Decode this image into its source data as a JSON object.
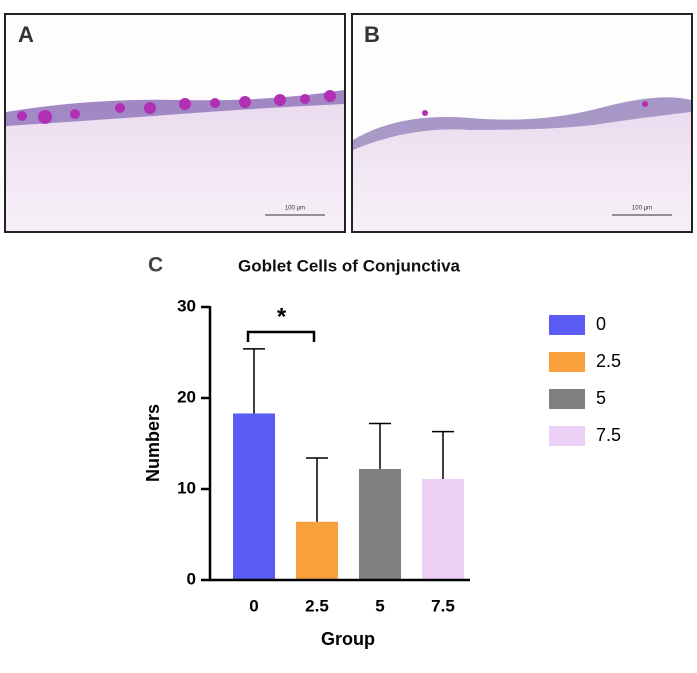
{
  "panels": {
    "a": {
      "label": "A",
      "scale_bar": "100 μm"
    },
    "b": {
      "label": "B",
      "scale_bar": "100 μm"
    }
  },
  "chart_data": {
    "type": "bar",
    "panel_label": "C",
    "title": "Goblet Cells of Conjunctiva",
    "x_label": "Group",
    "y_label": "Numbers",
    "categories": [
      "0",
      "2.5",
      "5",
      "7.5"
    ],
    "values": [
      18.3,
      6.4,
      12.2,
      11.1
    ],
    "errors": [
      7.1,
      7.0,
      5.0,
      5.2
    ],
    "colors": [
      "#5b5bf6",
      "#f7a03c",
      "#808080",
      "#ecd0f5"
    ],
    "ylim": [
      0,
      30
    ],
    "yticks": [
      0,
      10,
      20,
      30
    ],
    "significance": "*",
    "legend": "right"
  }
}
